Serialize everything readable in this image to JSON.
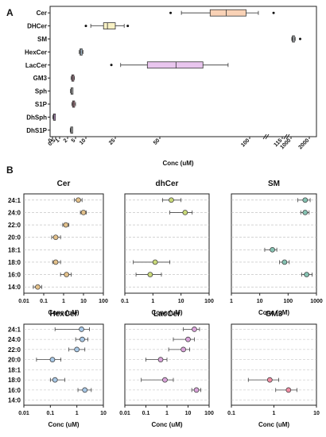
{
  "panel_a_label": "A",
  "panel_b_label": "B",
  "chart_data": [
    {
      "type": "box",
      "id": "A",
      "xlabel": "Conc (uM)",
      "x_scale": "broken-linear",
      "x_ticks": [
        "0",
        "0.5",
        "1",
        "2",
        "5",
        "10",
        "25",
        "50",
        "100",
        "115",
        "1000",
        "2000"
      ],
      "categories": [
        "Cer",
        "DHCer",
        "SM",
        "HexCer",
        "LacCer",
        "GM3",
        "Sph",
        "S1P",
        "DhSph",
        "DhS1P"
      ],
      "boxes": [
        {
          "name": "Cer",
          "color": "#f9d2b6",
          "min": 62,
          "q1": 78,
          "median": 87,
          "q3": 98,
          "max": 104,
          "outliers": [
            56,
            111
          ]
        },
        {
          "name": "DHCer",
          "color": "#f8f1c4",
          "min": 12.5,
          "q1": 19,
          "median": 21,
          "q3": 25,
          "max": 30,
          "outliers": [
            10,
            32
          ]
        },
        {
          "name": "SM",
          "color": "#c9d0d6",
          "min": 1040,
          "q1": 1080,
          "median": 1110,
          "q3": 1150,
          "max": 1230,
          "outliers": [
            1500
          ]
        },
        {
          "name": "HexCer",
          "color": "#bcd7ee",
          "min": 6.8,
          "q1": 7.2,
          "median": 7.6,
          "q3": 8.2,
          "max": 8.6,
          "outliers": []
        },
        {
          "name": "LacCer",
          "color": "#e9c6ee",
          "min": 28,
          "q1": 43,
          "median": 59,
          "q3": 74,
          "max": 88,
          "outliers": [
            23
          ]
        },
        {
          "name": "GM3",
          "color": "#f3b3c8",
          "min": 3.3,
          "q1": 3.6,
          "median": 3.9,
          "q3": 4.3,
          "max": 4.6,
          "outliers": []
        },
        {
          "name": "Sph",
          "color": "#cccccc",
          "min": 3.1,
          "q1": 3.3,
          "median": 3.5,
          "q3": 3.7,
          "max": 3.9,
          "outliers": []
        },
        {
          "name": "S1P",
          "color": "#f4a3b5",
          "min": 3.6,
          "q1": 3.9,
          "median": 4.2,
          "q3": 4.6,
          "max": 5.0,
          "outliers": []
        },
        {
          "name": "DhSph",
          "color": "#d9a8e6",
          "min": 0.05,
          "q1": 0.15,
          "median": 0.25,
          "q3": 0.35,
          "max": 0.45,
          "outliers": []
        },
        {
          "name": "DhS1P",
          "color": "#cccccc",
          "min": 3.0,
          "q1": 3.2,
          "median": 3.4,
          "q3": 3.6,
          "max": 3.8,
          "outliers": []
        }
      ]
    },
    {
      "type": "dot-errorbar",
      "id": "B-Cer",
      "title": "Cer",
      "xlabel": "Conc (uM)",
      "x_scale": "log",
      "xlim": [
        0.01,
        100
      ],
      "x_ticks": [
        "0.01",
        "0.1",
        "1",
        "10",
        "100"
      ],
      "marker_color": "#e2c08a",
      "categories": [
        "24:1",
        "24:0",
        "22:0",
        "20:0",
        "18:1",
        "18:0",
        "16:0",
        "14:0"
      ],
      "points": [
        {
          "cat": "24:1",
          "value": 5.5,
          "low": 3.5,
          "high": 8.5
        },
        {
          "cat": "24:0",
          "value": 10,
          "low": 7,
          "high": 14
        },
        {
          "cat": "22:0",
          "value": 1.3,
          "low": 0.9,
          "high": 1.8
        },
        {
          "cat": "20:0",
          "value": 0.4,
          "low": 0.25,
          "high": 0.7
        },
        {
          "cat": "18:0",
          "value": 0.4,
          "low": 0.28,
          "high": 0.7
        },
        {
          "cat": "16:0",
          "value": 1.4,
          "low": 0.7,
          "high": 2.4
        },
        {
          "cat": "14:0",
          "value": 0.05,
          "low": 0.03,
          "high": 0.08
        }
      ]
    },
    {
      "type": "dot-errorbar",
      "id": "B-dhCer",
      "title": "dhCer",
      "xlabel": "Conc (uM)",
      "x_scale": "log",
      "xlim": [
        0.1,
        100
      ],
      "x_ticks": [
        "0.1",
        "1",
        "10",
        "100"
      ],
      "marker_color": "#c9d97a",
      "categories": [
        "24:1",
        "24:0",
        "22:0",
        "20:0",
        "18:1",
        "18:0",
        "16:0",
        "14:0"
      ],
      "points": [
        {
          "cat": "24:1",
          "value": 4.5,
          "low": 2.2,
          "high": 10
        },
        {
          "cat": "24:0",
          "value": 14,
          "low": 4,
          "high": 25
        },
        {
          "cat": "18:0",
          "value": 1.2,
          "low": 0.2,
          "high": 4
        },
        {
          "cat": "16:0",
          "value": 0.8,
          "low": 0.25,
          "high": 2
        }
      ]
    },
    {
      "type": "dot-errorbar",
      "id": "B-SM",
      "title": "SM",
      "xlabel": "Conc (uM)",
      "x_scale": "log",
      "xlim": [
        1,
        1000
      ],
      "x_ticks": [
        "1",
        "10",
        "100",
        "1000"
      ],
      "marker_color": "#86c2b2",
      "categories": [
        "24:1",
        "24:0",
        "22:0",
        "20:0",
        "18:1",
        "18:0",
        "16:0",
        "14:0"
      ],
      "points": [
        {
          "cat": "24:1",
          "value": 400,
          "low": 220,
          "high": 600
        },
        {
          "cat": "24:0",
          "value": 400,
          "low": 280,
          "high": 550
        },
        {
          "cat": "18:1",
          "value": 28,
          "low": 15,
          "high": 40
        },
        {
          "cat": "18:0",
          "value": 75,
          "low": 50,
          "high": 110
        },
        {
          "cat": "16:0",
          "value": 450,
          "low": 300,
          "high": 700
        }
      ]
    },
    {
      "type": "dot-errorbar",
      "id": "B-HexCer",
      "title": "HexCer",
      "xlabel": "Conc (uM)",
      "x_scale": "log",
      "xlim": [
        0.01,
        10
      ],
      "x_ticks": [
        "0.01",
        "0.1",
        "1",
        "10"
      ],
      "marker_color": "#a8c8e6",
      "categories": [
        "24:1",
        "24:0",
        "22:0",
        "20:0",
        "18:1",
        "18:0",
        "16:0",
        "14:0"
      ],
      "points": [
        {
          "cat": "24:1",
          "value": 1.5,
          "low": 0.15,
          "high": 3
        },
        {
          "cat": "24:0",
          "value": 1.6,
          "low": 0.9,
          "high": 2.6
        },
        {
          "cat": "22:0",
          "value": 1.0,
          "low": 0.5,
          "high": 2
        },
        {
          "cat": "20:0",
          "value": 0.12,
          "low": 0.03,
          "high": 0.25
        },
        {
          "cat": "18:0",
          "value": 0.15,
          "low": 0.1,
          "high": 0.35
        },
        {
          "cat": "16:0",
          "value": 2,
          "low": 1.1,
          "high": 3.5
        }
      ]
    },
    {
      "type": "dot-errorbar",
      "id": "B-LacCer",
      "title": "LacCer",
      "xlabel": "Conc (uM)",
      "x_scale": "log",
      "xlim": [
        0.01,
        100
      ],
      "x_ticks": [
        "0.01",
        "0.1",
        "1",
        "10",
        "100"
      ],
      "marker_color": "#d9a3d9",
      "categories": [
        "24:1",
        "24:0",
        "22:0",
        "20:0",
        "18:1",
        "18:0",
        "16:0",
        "14:0"
      ],
      "points": [
        {
          "cat": "24:1",
          "value": 20,
          "low": 6,
          "high": 35
        },
        {
          "cat": "24:0",
          "value": 10,
          "low": 2,
          "high": 20
        },
        {
          "cat": "22:0",
          "value": 6,
          "low": 1.2,
          "high": 12
        },
        {
          "cat": "20:0",
          "value": 0.5,
          "low": 0.1,
          "high": 1
        },
        {
          "cat": "18:0",
          "value": 0.8,
          "low": 0.06,
          "high": 2
        },
        {
          "cat": "16:0",
          "value": 25,
          "low": 15,
          "high": 40
        }
      ]
    },
    {
      "type": "dot-errorbar",
      "id": "B-GM3",
      "title": "GM3",
      "xlabel": "Conc (uM)",
      "x_scale": "log",
      "xlim": [
        0.1,
        10
      ],
      "x_ticks": [
        "0.1",
        "1",
        "10"
      ],
      "marker_color": "#f08ea4",
      "categories": [
        "24:1",
        "24:0",
        "22:0",
        "20:0",
        "18:1",
        "18:0",
        "16:0",
        "14:0"
      ],
      "points": [
        {
          "cat": "18:0",
          "value": 0.8,
          "low": 0.25,
          "high": 1.3
        },
        {
          "cat": "16:0",
          "value": 2.2,
          "low": 1.1,
          "high": 3.5
        }
      ]
    }
  ]
}
